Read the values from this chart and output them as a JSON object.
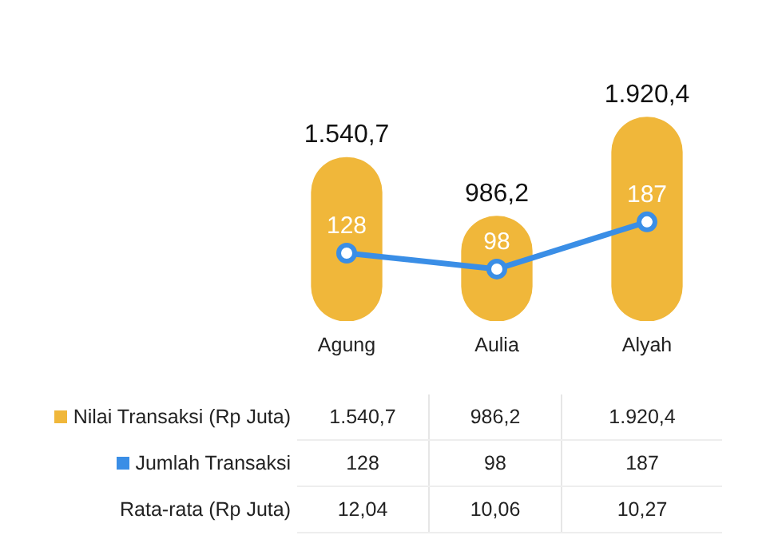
{
  "chart_data": {
    "type": "bar",
    "categories": [
      "Agung",
      "Aulia",
      "Alyah"
    ],
    "series": [
      {
        "name": "Nilai Transaksi (Rp Juta)",
        "color": "#f0b73a",
        "values": [
          1540.7,
          986.2,
          1920.4
        ],
        "value_labels": [
          "1.540,7",
          "986,2",
          "1.920,4"
        ]
      },
      {
        "name": "Jumlah Transaksi",
        "type": "line",
        "axis": "y2",
        "color": "#3a8ee6",
        "values": [
          128,
          98,
          187
        ],
        "value_labels": [
          "128",
          "98",
          "187"
        ]
      }
    ],
    "annotations": [
      "Rata-rata (Rp Juta)",
      "12,04",
      "10,06",
      "10,27"
    ],
    "marker": "circle",
    "line_style": "solid",
    "grid": false,
    "legend": "left",
    "tick_labels": "x"
  }
}
